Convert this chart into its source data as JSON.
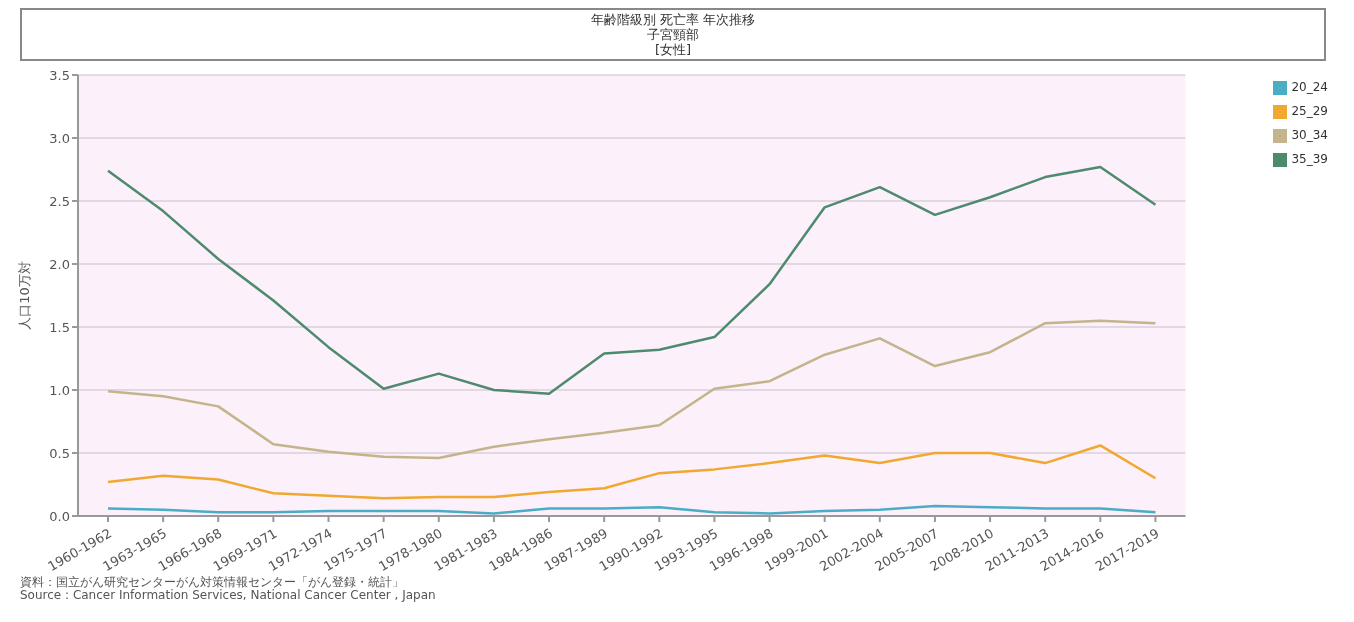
{
  "chart_data": {
    "type": "line",
    "title": "年齢階級別 死亡率 年次推移",
    "subtitle": "子宮頸部\n[女性]",
    "ylabel": "人口10万対",
    "categories": [
      "1960-1962",
      "1963-1965",
      "1966-1968",
      "1969-1971",
      "1972-1974",
      "1975-1977",
      "1978-1980",
      "1981-1983",
      "1984-1986",
      "1987-1989",
      "1990-1992",
      "1993-1995",
      "1996-1998",
      "1999-2001",
      "2002-2004",
      "2005-2007",
      "2008-2010",
      "2011-2013",
      "2014-2016",
      "2017-2019"
    ],
    "series": [
      {
        "name": "20_24",
        "color": "#4bacc6",
        "values": [
          0.06,
          0.05,
          0.03,
          0.03,
          0.04,
          0.04,
          0.04,
          0.02,
          0.06,
          0.06,
          0.07,
          0.03,
          0.02,
          0.04,
          0.05,
          0.08,
          0.07,
          0.06,
          0.06,
          0.03
        ]
      },
      {
        "name": "25_29",
        "color": "#f0a830",
        "values": [
          0.27,
          0.32,
          0.29,
          0.18,
          0.16,
          0.14,
          0.15,
          0.15,
          0.19,
          0.22,
          0.34,
          0.37,
          0.42,
          0.48,
          0.42,
          0.5,
          0.5,
          0.42,
          0.56,
          0.3
        ]
      },
      {
        "name": "30_34",
        "color": "#c4b48c",
        "values": [
          0.99,
          0.95,
          0.87,
          0.57,
          0.51,
          0.47,
          0.46,
          0.55,
          0.61,
          0.66,
          0.72,
          1.01,
          1.07,
          1.28,
          1.41,
          1.19,
          1.3,
          1.53,
          1.55,
          1.53
        ]
      },
      {
        "name": "35_39",
        "color": "#4e8a6e",
        "values": [
          2.74,
          2.42,
          2.04,
          1.71,
          1.34,
          1.01,
          1.13,
          1.0,
          0.97,
          1.29,
          1.32,
          1.42,
          1.84,
          2.45,
          2.61,
          2.39,
          2.53,
          2.69,
          2.77,
          2.47
        ]
      }
    ],
    "ylim": [
      0,
      3.5
    ],
    "yticks": [
      {
        "value": 0,
        "label": "0.0"
      },
      {
        "value": 0.5,
        "label": "0.5"
      },
      {
        "value": 1,
        "label": "1.0"
      },
      {
        "value": 1.5,
        "label": "1.5"
      },
      {
        "value": 2,
        "label": "2.0"
      },
      {
        "value": 2.5,
        "label": "2.5"
      },
      {
        "value": 3,
        "label": "3.0"
      },
      {
        "value": 3.5,
        "label": "3.5"
      }
    ],
    "grid": "y",
    "legend": "top right",
    "marker": "none",
    "line_style": "solid",
    "annotations": [
      "資料：国立がん研究センターがん対策情報センター「がん登録・統計」",
      "Source : Cancer Information Services, National Cancer Center , Japan"
    ]
  }
}
